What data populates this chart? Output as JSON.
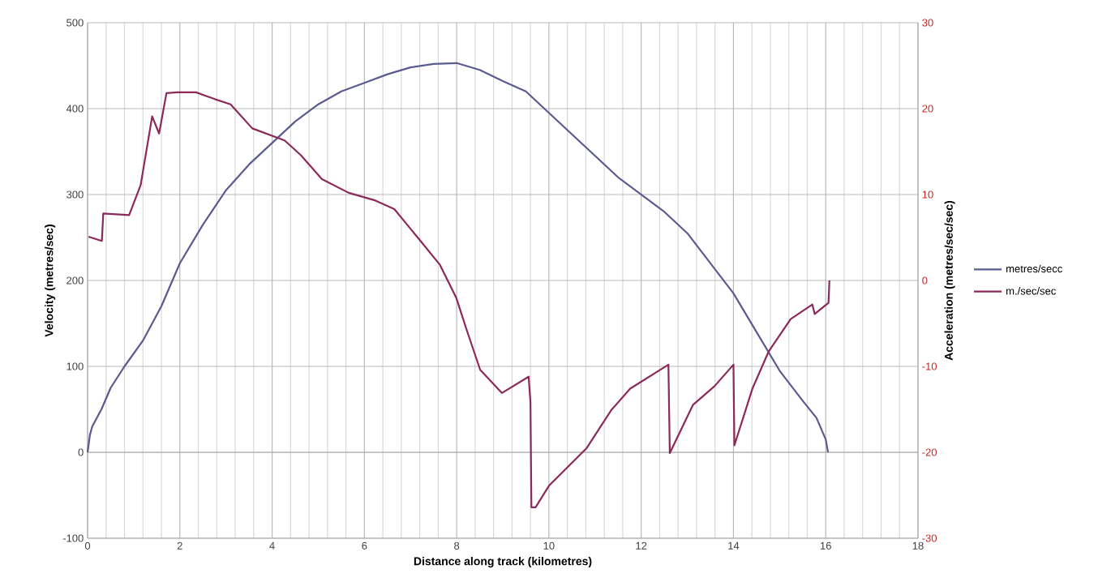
{
  "chart_data": {
    "type": "line",
    "xlabel": "Distance along track (kilometres)",
    "ylabel": "Velocity (metres/sec)",
    "y2label": "Acceleration (metres/sec/sec)",
    "xlim": [
      0,
      18
    ],
    "xticks": [
      0,
      2,
      4,
      6,
      8,
      10,
      12,
      14,
      16,
      18
    ],
    "ylim": [
      -100,
      500
    ],
    "yticks": [
      -100,
      0,
      100,
      200,
      300,
      400,
      500
    ],
    "y2lim": [
      -30,
      30
    ],
    "y2ticks": [
      -30,
      -20,
      -10,
      0,
      10,
      20,
      30
    ],
    "grid": true,
    "legend": "right",
    "marker": "none",
    "line_style": "solid",
    "series": [
      {
        "name": "metres/secc",
        "color": "#5b5b8f",
        "x": [
          0,
          0.05,
          0.1,
          0.3,
          0.5,
          0.8,
          1.2,
          1.6,
          2,
          2.5,
          3,
          3.5,
          4,
          4.5,
          5,
          5.5,
          6,
          6.5,
          7,
          7.5,
          8,
          8.5,
          9,
          9.5,
          10,
          10.5,
          11,
          11.5,
          12,
          12.5,
          13,
          13.5,
          14,
          14.5,
          15,
          15.5,
          15.8,
          16,
          16.05
        ],
        "values": [
          0,
          20,
          30,
          50,
          75,
          100,
          130,
          170,
          220,
          265,
          305,
          335,
          360,
          385,
          405,
          420,
          430,
          440,
          448,
          452,
          453,
          445,
          432,
          420,
          395,
          370,
          345,
          320,
          300,
          280,
          255,
          220,
          185,
          140,
          95,
          60,
          40,
          15,
          0
        ]
      },
      {
        "name": "m./sec/sec",
        "color": "#8b2a5a",
        "axis": "y2",
        "x": [
          0.02,
          0.31,
          0.34,
          0.9,
          1.15,
          1.4,
          1.55,
          1.71,
          1.94,
          2.35,
          2.76,
          3.1,
          3.57,
          4.27,
          4.62,
          5.08,
          5.66,
          6.24,
          6.65,
          7.17,
          7.64,
          7.99,
          8.22,
          8.51,
          8.98,
          9.56,
          9.6,
          9.62,
          9.71,
          10,
          10.82,
          11.35,
          11.76,
          12.59,
          12.62,
          13.12,
          13.59,
          14,
          14.02,
          14.41,
          14.76,
          15.24,
          15.71,
          15.76,
          16.06,
          16.08
        ],
        "values": [
          5.1,
          4.6,
          7.8,
          7.6,
          11.1,
          19.1,
          17.1,
          21.8,
          21.9,
          21.9,
          21.1,
          20.5,
          17.7,
          16.3,
          14.6,
          11.8,
          10.2,
          9.3,
          8.3,
          4.9,
          1.8,
          -2,
          -5.8,
          -10.4,
          -13.1,
          -11.2,
          -14.2,
          -26.4,
          -26.4,
          -23.9,
          -19.5,
          -15.1,
          -12.6,
          -9.8,
          -20.1,
          -14.5,
          -12.3,
          -9.8,
          -19.2,
          -12.6,
          -8.3,
          -4.5,
          -2.8,
          -3.9,
          -2.6,
          0
        ]
      }
    ]
  }
}
